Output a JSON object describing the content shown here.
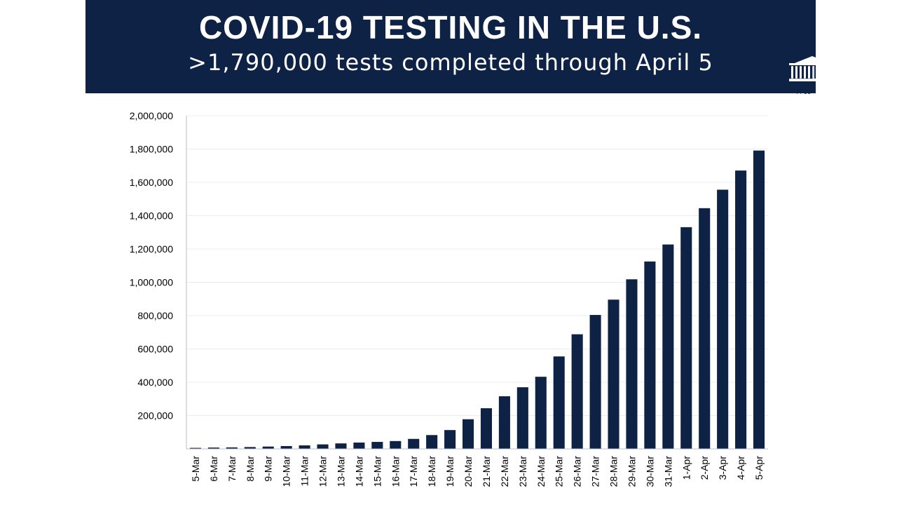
{
  "header": {
    "title": "COVID-19 TESTING IN THE U.S.",
    "subtitle": ">1,790,000 tests completed through April 5",
    "logo_text": "WH"
  },
  "colors": {
    "banner": "#0d2245",
    "bar": "#0d2245"
  },
  "chart_data": {
    "type": "bar",
    "categories": [
      "5-Mar",
      "6-Mar",
      "7-Mar",
      "8-Mar",
      "9-Mar",
      "10-Mar",
      "11-Mar",
      "12-Mar",
      "13-Mar",
      "14-Mar",
      "15-Mar",
      "16-Mar",
      "17-Mar",
      "18-Mar",
      "19-Mar",
      "20-Mar",
      "21-Mar",
      "22-Mar",
      "23-Mar",
      "24-Mar",
      "25-Mar",
      "26-Mar",
      "27-Mar",
      "28-Mar",
      "29-Mar",
      "30-Mar",
      "31-Mar",
      "1-Apr",
      "2-Apr",
      "3-Apr",
      "4-Apr",
      "5-Apr"
    ],
    "values": [
      6000,
      8000,
      9000,
      11000,
      14000,
      17000,
      21000,
      27000,
      33000,
      38000,
      42000,
      47000,
      60000,
      83000,
      113000,
      178000,
      244000,
      316000,
      370000,
      433000,
      555000,
      688000,
      804000,
      896000,
      1018000,
      1125000,
      1227000,
      1331000,
      1445000,
      1556000,
      1671000,
      1791000
    ],
    "yticks": [
      200000,
      400000,
      600000,
      800000,
      1000000,
      1200000,
      1400000,
      1600000,
      1800000,
      2000000
    ],
    "ytick_labels": [
      "200,000",
      "400,000",
      "600,000",
      "800,000",
      "1,000,000",
      "1,200,000",
      "1,400,000",
      "1,600,000",
      "1,800,000",
      "2,000,000"
    ],
    "ylim": [
      0,
      2000000
    ],
    "grid": true,
    "legend": false
  }
}
